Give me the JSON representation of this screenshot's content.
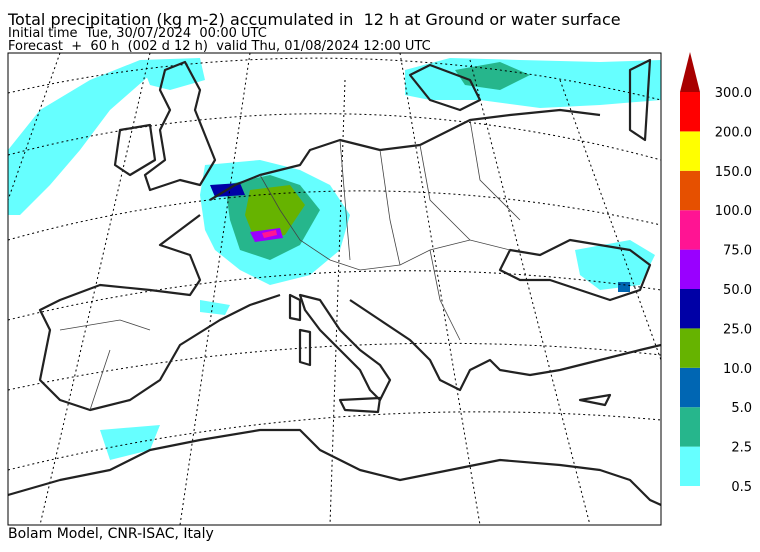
{
  "header": {
    "title": "Total precipitation (kg m-2) accumulated in  12 h at Ground or water surface",
    "initial_time": "Initial time  Tue, 30/07/2024  00:00 UTC",
    "forecast": "Forecast  +  60 h  (002 d 12 h)  valid Thu, 01/08/2024 12:00 UTC"
  },
  "colorbar": {
    "levels": [
      "0.5",
      "2.5",
      "5.0",
      "10.0",
      "25.0",
      "50.0",
      "75.0",
      "100.0",
      "150.0",
      "200.0",
      "300.0"
    ],
    "colors": [
      "#66ffff",
      "#26b68c",
      "#0066b3",
      "#66b300",
      "#0000a6",
      "#9900ff",
      "#ff1493",
      "#e65000",
      "#ffff00",
      "#ff0000"
    ],
    "extend_color": "#a80000"
  },
  "footer": "Bolam Model, CNR-ISAC, Italy"
}
